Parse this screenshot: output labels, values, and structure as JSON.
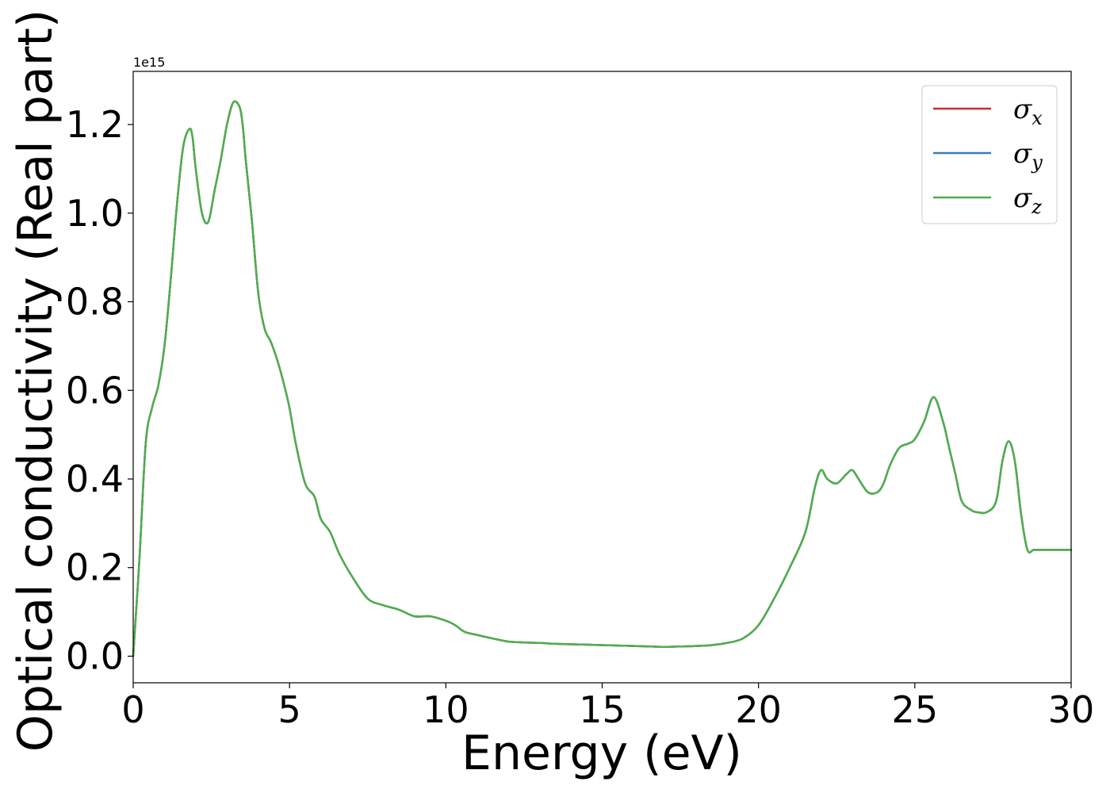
{
  "chart_data": {
    "type": "line",
    "title": "",
    "xlabel": "Energy (eV)",
    "ylabel": "Optical conductivity (Real part)",
    "y_offset_label": "1e15",
    "xlim": [
      0,
      30
    ],
    "ylim": [
      -0.06,
      1.32
    ],
    "x_ticks": [
      0,
      5,
      10,
      15,
      20,
      25,
      30
    ],
    "x_tick_labels": [
      "0",
      "5",
      "10",
      "15",
      "20",
      "25",
      "30"
    ],
    "y_ticks": [
      0.0,
      0.2,
      0.4,
      0.6,
      0.8,
      1.0,
      1.2
    ],
    "y_tick_labels": [
      "0.0",
      "0.2",
      "0.4",
      "0.6",
      "0.8",
      "1.0",
      "1.2"
    ],
    "grid": false,
    "legend_position": "top-right",
    "x": [
      0,
      0.2,
      0.4,
      0.6,
      0.8,
      1.0,
      1.2,
      1.4,
      1.6,
      1.8,
      1.9,
      2.0,
      2.2,
      2.4,
      2.6,
      2.8,
      3.0,
      3.2,
      3.4,
      3.5,
      3.6,
      3.8,
      4.0,
      4.2,
      4.4,
      4.6,
      4.8,
      5.0,
      5.2,
      5.5,
      5.8,
      6.0,
      6.3,
      6.6,
      7.0,
      7.5,
      8.0,
      8.5,
      9.0,
      9.5,
      10.0,
      10.3,
      10.6,
      11.0,
      11.5,
      12.0,
      12.5,
      13.0,
      13.5,
      14.0,
      14.5,
      15.0,
      15.5,
      16.0,
      16.5,
      17.0,
      17.5,
      18.0,
      18.5,
      19.0,
      19.5,
      20.0,
      20.5,
      21.0,
      21.5,
      21.8,
      22.0,
      22.2,
      22.5,
      22.8,
      23.0,
      23.2,
      23.5,
      23.8,
      24.0,
      24.2,
      24.5,
      24.8,
      25.0,
      25.3,
      25.6,
      25.9,
      26.1,
      26.3,
      26.5,
      26.8,
      27.0,
      27.3,
      27.6,
      27.8,
      28.0,
      28.2,
      28.4,
      28.6,
      28.8,
      29.0,
      29.2,
      29.5,
      29.8,
      30.0
    ],
    "series": [
      {
        "name": "x",
        "color": "#d62728",
        "values": [
          0.0,
          0.22,
          0.48,
          0.56,
          0.61,
          0.7,
          0.85,
          1.02,
          1.15,
          1.19,
          1.17,
          1.1,
          1.0,
          0.98,
          1.05,
          1.12,
          1.2,
          1.25,
          1.24,
          1.2,
          1.12,
          0.98,
          0.82,
          0.74,
          0.71,
          0.67,
          0.62,
          0.56,
          0.48,
          0.39,
          0.36,
          0.31,
          0.28,
          0.23,
          0.18,
          0.13,
          0.115,
          0.105,
          0.09,
          0.09,
          0.08,
          0.07,
          0.055,
          0.048,
          0.04,
          0.033,
          0.031,
          0.03,
          0.028,
          0.027,
          0.026,
          0.025,
          0.024,
          0.023,
          0.022,
          0.021,
          0.022,
          0.023,
          0.025,
          0.03,
          0.04,
          0.07,
          0.13,
          0.2,
          0.28,
          0.38,
          0.42,
          0.4,
          0.39,
          0.41,
          0.42,
          0.4,
          0.37,
          0.37,
          0.39,
          0.43,
          0.47,
          0.48,
          0.49,
          0.53,
          0.585,
          0.53,
          0.47,
          0.41,
          0.35,
          0.33,
          0.325,
          0.325,
          0.35,
          0.44,
          0.485,
          0.44,
          0.32,
          0.24,
          0.24,
          0.24,
          0.24,
          0.24,
          0.24,
          0.24
        ]
      },
      {
        "name": "y",
        "color": "#377eb8",
        "values": [
          0.0,
          0.22,
          0.48,
          0.56,
          0.61,
          0.7,
          0.85,
          1.02,
          1.15,
          1.19,
          1.17,
          1.1,
          1.0,
          0.98,
          1.05,
          1.12,
          1.2,
          1.25,
          1.24,
          1.2,
          1.12,
          0.98,
          0.82,
          0.74,
          0.71,
          0.67,
          0.62,
          0.56,
          0.48,
          0.39,
          0.36,
          0.31,
          0.28,
          0.23,
          0.18,
          0.13,
          0.115,
          0.105,
          0.09,
          0.09,
          0.08,
          0.07,
          0.055,
          0.048,
          0.04,
          0.033,
          0.031,
          0.03,
          0.028,
          0.027,
          0.026,
          0.025,
          0.024,
          0.023,
          0.022,
          0.021,
          0.022,
          0.023,
          0.025,
          0.03,
          0.04,
          0.07,
          0.13,
          0.2,
          0.28,
          0.38,
          0.42,
          0.4,
          0.39,
          0.41,
          0.42,
          0.4,
          0.37,
          0.37,
          0.39,
          0.43,
          0.47,
          0.48,
          0.49,
          0.53,
          0.585,
          0.53,
          0.47,
          0.41,
          0.35,
          0.33,
          0.325,
          0.325,
          0.35,
          0.44,
          0.485,
          0.44,
          0.32,
          0.24,
          0.24,
          0.24,
          0.24,
          0.24,
          0.24,
          0.24
        ]
      },
      {
        "name": "z",
        "color": "#4daf4a",
        "values": [
          0.0,
          0.22,
          0.48,
          0.56,
          0.61,
          0.7,
          0.85,
          1.02,
          1.15,
          1.19,
          1.17,
          1.1,
          1.0,
          0.98,
          1.05,
          1.12,
          1.2,
          1.25,
          1.24,
          1.2,
          1.12,
          0.98,
          0.82,
          0.74,
          0.71,
          0.67,
          0.62,
          0.56,
          0.48,
          0.39,
          0.36,
          0.31,
          0.28,
          0.23,
          0.18,
          0.13,
          0.115,
          0.105,
          0.09,
          0.09,
          0.08,
          0.07,
          0.055,
          0.048,
          0.04,
          0.033,
          0.031,
          0.03,
          0.028,
          0.027,
          0.026,
          0.025,
          0.024,
          0.023,
          0.022,
          0.021,
          0.022,
          0.023,
          0.025,
          0.03,
          0.04,
          0.07,
          0.13,
          0.2,
          0.28,
          0.38,
          0.42,
          0.4,
          0.39,
          0.41,
          0.42,
          0.4,
          0.37,
          0.37,
          0.39,
          0.43,
          0.47,
          0.48,
          0.49,
          0.53,
          0.585,
          0.53,
          0.47,
          0.41,
          0.35,
          0.33,
          0.325,
          0.325,
          0.35,
          0.44,
          0.485,
          0.44,
          0.32,
          0.24,
          0.24,
          0.24,
          0.24,
          0.24,
          0.24,
          0.24
        ]
      }
    ],
    "legend": [
      {
        "symbol": "σ",
        "subscript": "x",
        "color": "#d62728"
      },
      {
        "symbol": "σ",
        "subscript": "y",
        "color": "#377eb8"
      },
      {
        "symbol": "σ",
        "subscript": "z",
        "color": "#4daf4a"
      }
    ]
  }
}
